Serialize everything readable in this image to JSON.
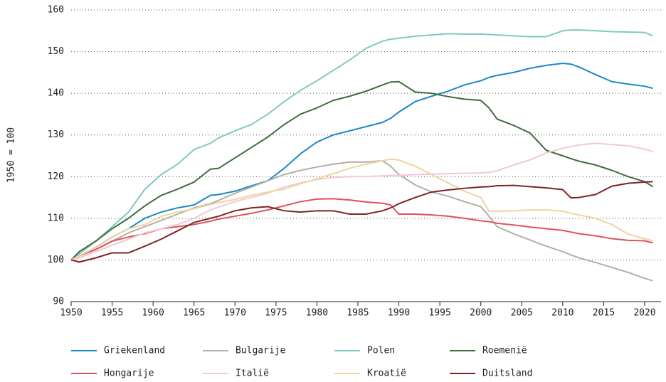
{
  "chart_data": {
    "type": "line",
    "ylabel": "1950 = 100",
    "x": [
      1950,
      1951,
      1953,
      1955,
      1957,
      1959,
      1961,
      1963,
      1965,
      1967,
      1968,
      1970,
      1972,
      1974,
      1976,
      1978,
      1980,
      1982,
      1984,
      1986,
      1988,
      1989,
      1990,
      1992,
      1994,
      1996,
      1998,
      2000,
      2001,
      2002,
      2004,
      2006,
      2008,
      2010,
      2011,
      2012,
      2014,
      2016,
      2018,
      2020,
      2021
    ],
    "xlim": [
      1950,
      2022
    ],
    "xticks": [
      1950,
      1955,
      1960,
      1965,
      1970,
      1975,
      1980,
      1985,
      1990,
      1995,
      2000,
      2005,
      2010,
      2015,
      2020
    ],
    "ylim": [
      90,
      160
    ],
    "yticks": [
      90,
      100,
      110,
      120,
      130,
      140,
      150,
      160
    ],
    "grid": true,
    "series": [
      {
        "name": "Griekenland",
        "color": "#1a8ac6",
        "values": [
          100,
          101,
          103,
          105.5,
          107.5,
          110,
          111.5,
          112.5,
          113.2,
          115.5,
          115.7,
          116.5,
          117.8,
          119,
          122,
          125.5,
          128.3,
          130,
          131,
          132,
          133,
          134,
          135.5,
          138,
          139.3,
          140.5,
          142,
          143,
          143.8,
          144.3,
          145,
          146,
          146.7,
          147.2,
          147,
          146.3,
          144.5,
          142.8,
          142.2,
          141.7,
          141.2
        ]
      },
      {
        "name": "Bulgarije",
        "color": "#b3b0a3",
        "values": [
          100,
          101,
          102.5,
          104.5,
          106.5,
          108,
          109.5,
          111,
          112.5,
          113.5,
          114.3,
          116,
          117.5,
          119,
          120.5,
          121.5,
          122.3,
          123,
          123.5,
          123.5,
          123.8,
          122.5,
          120.5,
          118,
          116.3,
          115.3,
          114,
          112.8,
          110.5,
          108,
          106.3,
          104.8,
          103.3,
          102,
          101.2,
          100.5,
          99.4,
          98.2,
          97,
          95.6,
          95
        ]
      },
      {
        "name": "Polen",
        "color": "#7fcac0",
        "values": [
          100,
          101.5,
          104.5,
          108,
          111.5,
          117,
          120.5,
          123,
          126.5,
          128,
          129.3,
          131,
          132.5,
          135,
          138,
          140.7,
          143,
          145.5,
          148,
          150.8,
          152.5,
          153,
          153.2,
          153.7,
          154,
          154.3,
          154.2,
          154.2,
          154.1,
          154,
          153.8,
          153.6,
          153.6,
          155,
          155.2,
          155.2,
          155,
          154.8,
          154.7,
          154.6,
          153.8
        ]
      },
      {
        "name": "Roemenië",
        "color": "#3f6c3e",
        "values": [
          100,
          102,
          104.5,
          107.5,
          110,
          113,
          115.5,
          117,
          118.7,
          121.8,
          122,
          124.5,
          127,
          129.5,
          132.5,
          135,
          136.5,
          138.3,
          139.3,
          140.5,
          142,
          142.7,
          142.8,
          140.3,
          140,
          139.2,
          138.6,
          138.3,
          136.5,
          133.8,
          132.3,
          130.5,
          126.3,
          125,
          124.3,
          123.7,
          122.8,
          121.5,
          120,
          118.8,
          117.6
        ]
      },
      {
        "name": "Hongarije",
        "color": "#e0525d",
        "values": [
          100,
          101,
          102.5,
          104.5,
          105.5,
          106.3,
          107.5,
          108,
          108.5,
          109.3,
          109.8,
          110.5,
          111.2,
          112,
          113,
          114,
          114.6,
          114.7,
          114.4,
          113.9,
          113.6,
          113.2,
          111,
          111,
          110.8,
          110.5,
          110,
          109.4,
          109.2,
          108.8,
          108.4,
          107.9,
          107.5,
          107.1,
          106.7,
          106.3,
          105.8,
          105.1,
          104.7,
          104.6,
          104.1
        ]
      },
      {
        "name": "Italië",
        "color": "#f5c7d5",
        "values": [
          100,
          100.5,
          102,
          103.5,
          105,
          106.5,
          107.5,
          108.5,
          110,
          112,
          112.7,
          114,
          115,
          116,
          117.5,
          118.5,
          119.3,
          119.8,
          120,
          120,
          120.2,
          120.3,
          120.3,
          120.5,
          120.6,
          120.7,
          120.8,
          120.9,
          121,
          121.4,
          122.8,
          124,
          125.7,
          126.8,
          127.2,
          127.6,
          128,
          127.7,
          127.4,
          126.6,
          126
        ]
      },
      {
        "name": "Kroatië",
        "color": "#f0d49e",
        "values": [
          100,
          101,
          103,
          105.5,
          107.5,
          108.5,
          110.5,
          111.5,
          112.3,
          113.3,
          113.8,
          114.5,
          115.5,
          116.3,
          117,
          118.3,
          119.5,
          120.7,
          122,
          123,
          123.8,
          124.2,
          124,
          122.5,
          120.5,
          118.5,
          116.5,
          115,
          111.7,
          111.7,
          111.8,
          112,
          112,
          111.7,
          111.2,
          110.8,
          110,
          108.5,
          106.2,
          105.1,
          104.6
        ]
      },
      {
        "name": "Duitsland",
        "color": "#7c2424",
        "values": [
          100,
          99.5,
          100.5,
          101.7,
          101.7,
          103.3,
          105,
          107,
          109,
          110,
          110.5,
          111.8,
          112.5,
          112.8,
          111.8,
          111.5,
          111.8,
          111.8,
          111,
          111,
          111.8,
          112.5,
          113.5,
          115,
          116.3,
          116.8,
          117.2,
          117.5,
          117.6,
          117.8,
          117.9,
          117.6,
          117.3,
          116.9,
          114.9,
          115,
          115.7,
          117.7,
          118.4,
          118.7,
          118.8
        ]
      }
    ]
  }
}
